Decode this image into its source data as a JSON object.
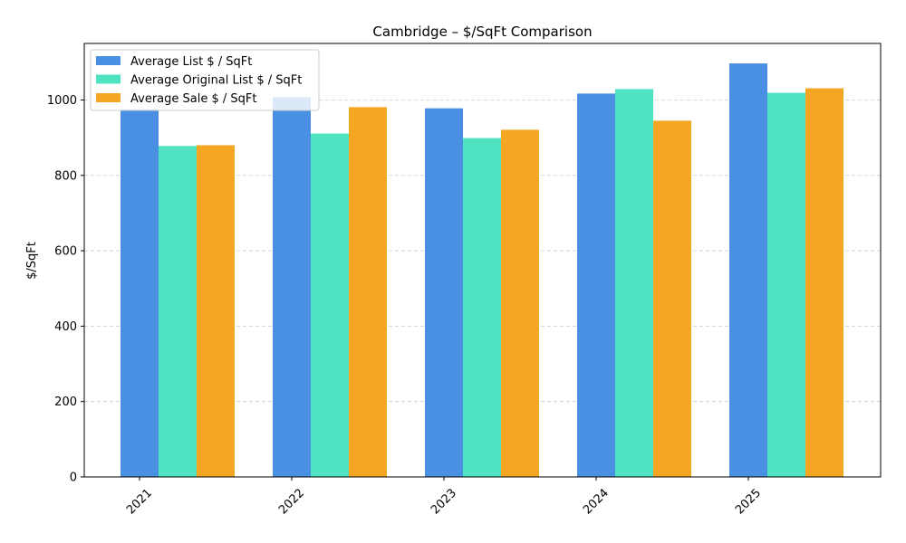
{
  "chart_data": {
    "type": "bar",
    "title": "Cambridge – $/SqFt Comparison",
    "xlabel": "",
    "ylabel": "$/SqFt",
    "categories": [
      "2021",
      "2022",
      "2023",
      "2024",
      "2025"
    ],
    "ylim": [
      0,
      1150
    ],
    "yticks": [
      0,
      200,
      400,
      600,
      800,
      1000
    ],
    "grid": "y-dashed",
    "legend_position": "top-left",
    "series": [
      {
        "name": "Average List $ / SqFt",
        "color": "#4a90e2",
        "values": [
          975,
          1007,
          978,
          1017,
          1097
        ]
      },
      {
        "name": "Average Original List $ / SqFt",
        "color": "#50e3c2",
        "values": [
          878,
          911,
          899,
          1029,
          1019
        ]
      },
      {
        "name": "Average Sale $ / SqFt",
        "color": "#f5a623",
        "values": [
          880,
          981,
          921,
          945,
          1031
        ]
      }
    ]
  }
}
